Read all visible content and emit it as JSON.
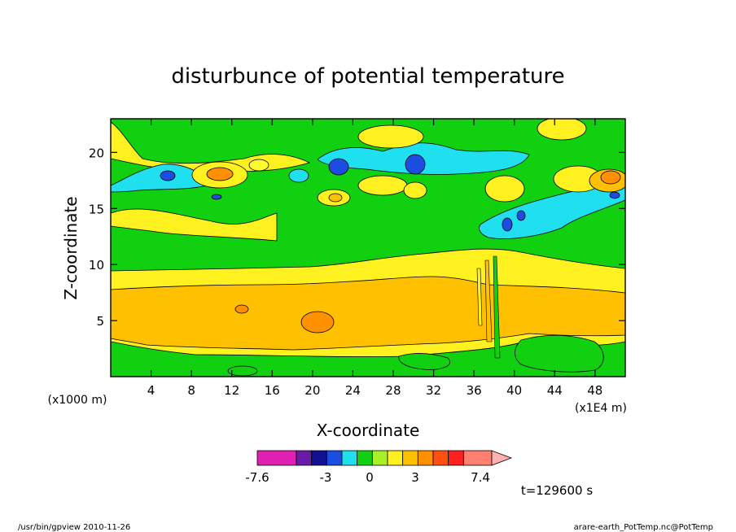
{
  "chart_data": {
    "type": "heatmap",
    "title": "disturbunce of potential temperature",
    "xlabel": "X-coordinate",
    "ylabel": "Z-coordinate",
    "x_unit_left": "(x1000 m)",
    "x_unit_right": "(x1E4 m)",
    "xlim": [
      0,
      51
    ],
    "ylim": [
      0,
      23
    ],
    "x_ticks": [
      "4",
      "8",
      "12",
      "16",
      "20",
      "24",
      "28",
      "32",
      "36",
      "40",
      "44",
      "48"
    ],
    "y_ticks": [
      "5",
      "10",
      "15",
      "20"
    ],
    "x_tick_values": [
      4,
      8,
      12,
      16,
      20,
      24,
      28,
      32,
      36,
      40,
      44,
      48
    ],
    "y_tick_values": [
      5,
      10,
      15,
      20
    ],
    "colorbar": {
      "labels": [
        "-7.6",
        "-3",
        "0",
        "3",
        "7.4"
      ],
      "label_values": [
        -7.6,
        -3,
        0,
        3,
        7.4
      ],
      "colors": [
        "#e020b0",
        "#6a1aa8",
        "#101090",
        "#1a4de0",
        "#20e0f0",
        "#10d010",
        "#a8f028",
        "#fff020",
        "#ffc000",
        "#ff9000",
        "#ff5010",
        "#ff2020",
        "#ff8070",
        "#ffb0b0"
      ]
    },
    "time_label": "t=129600 s",
    "regions": [
      {
        "name": "top-green",
        "level": "0",
        "color": "#10d010"
      },
      {
        "name": "upper-yellow-band",
        "level": "1",
        "color": "#fff020"
      },
      {
        "name": "mid-green-band",
        "level": "0",
        "color": "#10d010"
      },
      {
        "name": "lower-yellow-band",
        "level": "1",
        "color": "#fff020"
      },
      {
        "name": "core-orange-band",
        "level": "2",
        "color": "#ffc000"
      },
      {
        "name": "warm-blob-21km",
        "level": "3",
        "color": "#ff9000"
      },
      {
        "name": "cold-blob-30km",
        "level": "-3",
        "color": "#1a4de0"
      },
      {
        "name": "warm-blob-49km",
        "level": "3",
        "color": "#ff9000"
      }
    ]
  },
  "footer": {
    "left": "/usr/bin/gpview  2010-11-26",
    "right": "arare-earth_PotTemp.nc@PotTemp"
  },
  "colors": {
    "green": "#10d010",
    "yellow": "#fff020",
    "orange": "#ffc000",
    "dark_orange": "#ff9000",
    "cyan": "#20e0f0",
    "blue": "#1a4de0",
    "light_green": "#a8f028"
  }
}
